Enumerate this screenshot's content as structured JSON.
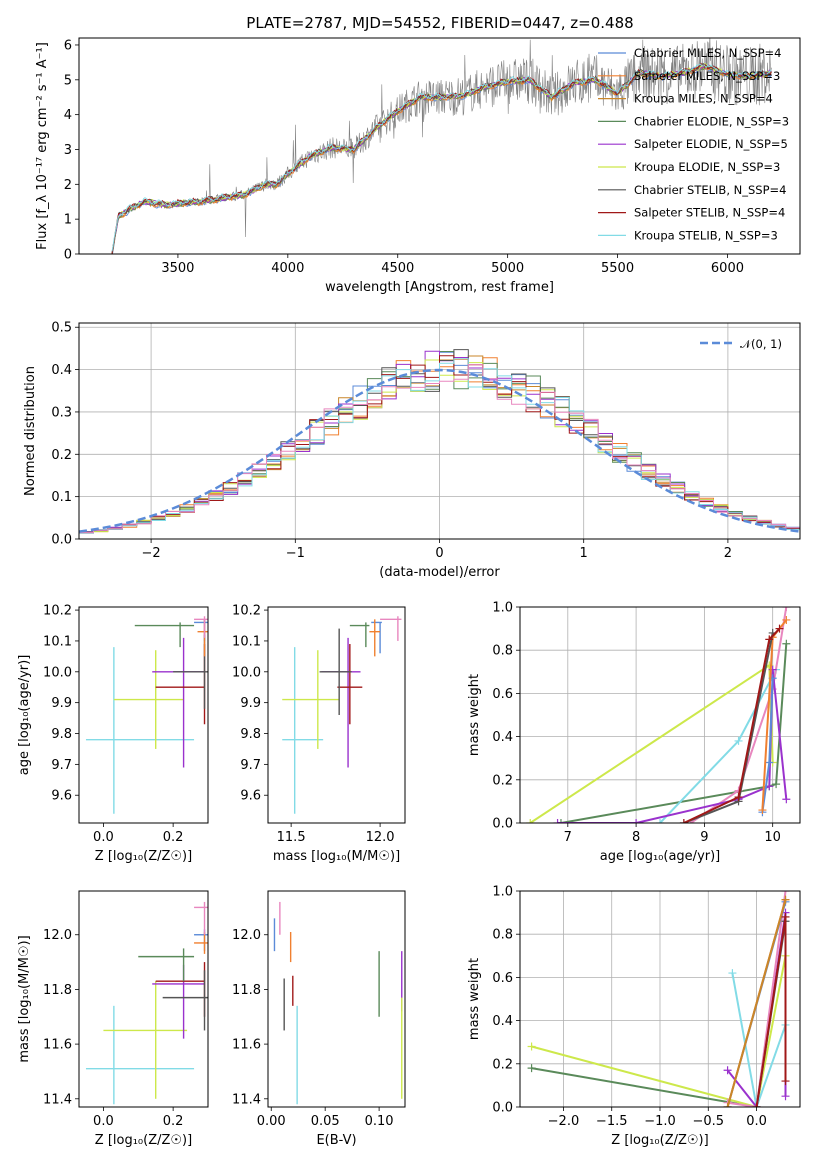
{
  "chart_data": [
    {
      "id": "spectrum",
      "type": "line",
      "title": "PLATE=2787, MJD=54552, FIBERID=0447, z=0.488",
      "xlabel": "wavelength [Angstrom, rest frame]",
      "ylabel": "Flux [f_λ 10⁻¹⁷ erg cm⁻² s⁻¹ A⁻¹]",
      "xlim": [
        3050,
        6330
      ],
      "ylim": [
        0,
        6.2
      ],
      "xticks": [
        3500,
        4000,
        4500,
        5000,
        5500,
        6000
      ],
      "yticks": [
        0,
        1,
        2,
        3,
        4,
        5,
        6
      ],
      "grid": false,
      "legend_position": "top-right",
      "data_color": "#808080",
      "data_x_range": [
        3500,
        6200
      ],
      "series": [
        {
          "name": "Chabrier MILES, N_SSP=4",
          "color": "#5b8bd8"
        },
        {
          "name": "Salpeter MILES, N_SSP=3",
          "color": "#f08030"
        },
        {
          "name": "Kroupa MILES, N_SSP=4",
          "color": "#c9862a"
        },
        {
          "name": "Chabrier ELODIE, N_SSP=3",
          "color": "#5a8a5a"
        },
        {
          "name": "Salpeter ELODIE, N_SSP=5",
          "color": "#9a32cd"
        },
        {
          "name": "Kroupa ELODIE, N_SSP=3",
          "color": "#cde84b"
        },
        {
          "name": "Chabrier STELIB, N_SSP=4",
          "color": "#555555"
        },
        {
          "name": "Salpeter STELIB, N_SSP=4",
          "color": "#a01818"
        },
        {
          "name": "Kroupa STELIB, N_SSP=3",
          "color": "#82dbe6"
        }
      ],
      "model_x": [
        3200,
        3230,
        3300,
        3350,
        3400,
        3450,
        3500,
        3600,
        3700,
        3800,
        3900,
        3950,
        4000,
        4100,
        4200,
        4300,
        4400,
        4500,
        4600,
        4700,
        4800,
        4900,
        5000,
        5100,
        5200,
        5300,
        5400,
        5500,
        5600,
        5700,
        5800,
        5900,
        6000,
        6100,
        6200
      ],
      "model_y": [
        0.0,
        1.1,
        1.35,
        1.5,
        1.45,
        1.4,
        1.45,
        1.5,
        1.6,
        1.7,
        2.0,
        2.0,
        2.3,
        2.8,
        3.05,
        3.0,
        3.6,
        4.1,
        4.5,
        4.5,
        4.55,
        4.8,
        4.95,
        5.0,
        4.5,
        4.9,
        5.0,
        4.6,
        5.2,
        5.1,
        5.2,
        5.4,
        5.15,
        5.1,
        5.2
      ]
    },
    {
      "id": "residuals",
      "type": "line",
      "xlabel": "(data-model)/error",
      "ylabel": "Normed distribution",
      "xlim": [
        -2.5,
        2.5
      ],
      "ylim": [
        0,
        0.51
      ],
      "xticks": [
        -2,
        -1,
        0,
        1,
        2
      ],
      "yticks": [
        0.0,
        0.1,
        0.2,
        0.3,
        0.4,
        0.5
      ],
      "grid": true,
      "legend_position": "top-right",
      "reference": {
        "name": "𝒩(0, 1)",
        "mu": 0,
        "sigma": 1,
        "color": "#5b8bd8"
      },
      "bin_width": 0.1
    },
    {
      "id": "age-vs-Z",
      "type": "scatter",
      "xlabel": "Z [log₁₀(Z/Z☉)]",
      "ylabel": "age  [log₁₀(age/yr)]",
      "xlim": [
        -0.07,
        0.3
      ],
      "ylim": [
        9.51,
        10.21
      ],
      "xticks": [
        0.0,
        0.2
      ],
      "yticks": [
        9.6,
        9.7,
        9.8,
        9.9,
        10.0,
        10.1,
        10.2
      ],
      "grid": false,
      "points": [
        {
          "color": "#82dbe6",
          "x": 0.03,
          "y": 9.78,
          "ex": [
            -0.05,
            0.26
          ],
          "ey": [
            9.54,
            10.08
          ]
        },
        {
          "color": "#cde84b",
          "x": 0.15,
          "y": 9.91,
          "ex": [
            0.03,
            0.23
          ],
          "ey": [
            9.75,
            10.07
          ]
        },
        {
          "color": "#9a32cd",
          "x": 0.23,
          "y": 10.0,
          "ex": [
            0.14,
            0.29
          ],
          "ey": [
            9.69,
            10.11
          ]
        },
        {
          "color": "#a01818",
          "x": 0.29,
          "y": 9.95,
          "ex": [
            0.15,
            0.29
          ],
          "ey": [
            9.83,
            10.09
          ]
        },
        {
          "color": "#555555",
          "x": 0.29,
          "y": 10.0,
          "ex": [
            0.2,
            0.3
          ],
          "ey": [
            9.88,
            10.12
          ]
        },
        {
          "color": "#5a8a5a",
          "x": 0.22,
          "y": 10.15,
          "ex": [
            0.09,
            0.26
          ],
          "ey": [
            10.08,
            10.16
          ]
        },
        {
          "color": "#5b8bd8",
          "x": 0.29,
          "y": 10.16,
          "ex": [
            0.26,
            0.3
          ],
          "ey": [
            10.1,
            10.17
          ]
        },
        {
          "color": "#f08030",
          "x": 0.29,
          "y": 10.13,
          "ex": [
            0.27,
            0.3
          ],
          "ey": [
            10.05,
            10.17
          ]
        },
        {
          "color": "#e887bf",
          "x": 0.29,
          "y": 10.17,
          "ex": [
            0.26,
            0.3
          ],
          "ey": [
            10.11,
            10.18
          ]
        }
      ]
    },
    {
      "id": "age-vs-mass",
      "type": "scatter",
      "xlabel": "mass [log₁₀(M/M☉)]",
      "ylabel": "",
      "xlim": [
        11.37,
        12.14
      ],
      "ylim": [
        9.51,
        10.21
      ],
      "xticks": [
        11.5,
        12.0
      ],
      "yticks": [
        9.6,
        9.7,
        9.8,
        9.9,
        10.0,
        10.1,
        10.2
      ],
      "grid": false,
      "points": [
        {
          "color": "#82dbe6",
          "x": 11.52,
          "y": 9.78,
          "ex": [
            11.45,
            11.68
          ],
          "ey": [
            9.54,
            10.08
          ]
        },
        {
          "color": "#cde84b",
          "x": 11.65,
          "y": 9.91,
          "ex": [
            11.45,
            11.77
          ],
          "ey": [
            9.75,
            10.07
          ]
        },
        {
          "color": "#9a32cd",
          "x": 11.82,
          "y": 10.0,
          "ex": [
            11.67,
            11.89
          ],
          "ey": [
            9.69,
            10.11
          ]
        },
        {
          "color": "#a01818",
          "x": 11.83,
          "y": 9.95,
          "ex": [
            11.76,
            11.9
          ],
          "ey": [
            9.83,
            10.09
          ]
        },
        {
          "color": "#555555",
          "x": 11.77,
          "y": 10.0,
          "ex": [
            11.66,
            11.84
          ],
          "ey": [
            9.86,
            10.14
          ]
        },
        {
          "color": "#5a8a5a",
          "x": 11.92,
          "y": 10.15,
          "ex": [
            11.83,
            11.94
          ],
          "ey": [
            10.08,
            10.16
          ]
        },
        {
          "color": "#5b8bd8",
          "x": 12.0,
          "y": 10.16,
          "ex": [
            11.95,
            12.01
          ],
          "ey": [
            10.06,
            10.16
          ]
        },
        {
          "color": "#f08030",
          "x": 11.97,
          "y": 10.13,
          "ex": [
            11.94,
            12.0
          ],
          "ey": [
            10.05,
            10.17
          ]
        },
        {
          "color": "#e887bf",
          "x": 12.1,
          "y": 10.17,
          "ex": [
            12.0,
            12.12
          ],
          "ey": [
            10.1,
            10.18
          ]
        }
      ]
    },
    {
      "id": "mass-weight-vs-age",
      "type": "line",
      "xlabel": "age  [log₁₀(age/yr)]",
      "ylabel": "mass weight",
      "xlim": [
        6.3,
        10.4
      ],
      "ylim": [
        0,
        1
      ],
      "xticks": [
        7,
        8,
        9,
        10
      ],
      "yticks": [
        0.0,
        0.2,
        0.4,
        0.6,
        0.8,
        1.0
      ],
      "grid": true,
      "series": [
        {
          "color": "#cde84b",
          "points": [
            [
              6.45,
              0.0
            ],
            [
              9.95,
              0.73
            ],
            [
              10.0,
              0.28
            ]
          ]
        },
        {
          "color": "#5a8a5a",
          "points": [
            [
              6.9,
              0.0
            ],
            [
              9.95,
              0.17
            ],
            [
              10.05,
              0.18
            ],
            [
              10.2,
              0.83
            ]
          ]
        },
        {
          "color": "#82dbe6",
          "points": [
            [
              8.35,
              0.0
            ],
            [
              9.5,
              0.38
            ],
            [
              10.05,
              0.71
            ]
          ]
        },
        {
          "color": "#e887bf",
          "points": [
            [
              8.8,
              0.0
            ],
            [
              9.5,
              0.15
            ],
            [
              10.0,
              0.62
            ],
            [
              10.2,
              1.0
            ]
          ]
        },
        {
          "color": "#9a32cd",
          "points": [
            [
              6.85,
              0.0
            ],
            [
              8.0,
              0.0
            ],
            [
              9.5,
              0.11
            ],
            [
              9.95,
              0.17
            ],
            [
              10.0,
              0.71
            ],
            [
              10.2,
              0.11
            ]
          ]
        },
        {
          "color": "#5b8bd8",
          "points": [
            [
              9.85,
              0.05
            ],
            [
              9.95,
              0.28
            ],
            [
              10.0,
              0.67
            ]
          ]
        },
        {
          "color": "#f08030",
          "points": [
            [
              9.85,
              0.06
            ],
            [
              10.0,
              0.86
            ],
            [
              10.2,
              0.94
            ]
          ]
        },
        {
          "color": "#555555",
          "points": [
            [
              8.7,
              0.0
            ],
            [
              9.5,
              0.1
            ],
            [
              10.0,
              0.88
            ]
          ]
        },
        {
          "color": "#a01818",
          "points": [
            [
              8.7,
              0.0
            ],
            [
              9.5,
              0.12
            ],
            [
              9.95,
              0.85
            ],
            [
              10.1,
              0.9
            ]
          ]
        }
      ]
    },
    {
      "id": "mass-vs-Z",
      "type": "scatter",
      "xlabel": "Z [log₁₀(Z/Z☉)]",
      "ylabel": "mass [log₁₀(M/M☉)]",
      "xlim": [
        -0.07,
        0.3
      ],
      "ylim": [
        11.37,
        12.16
      ],
      "xticks": [
        0.0,
        0.2
      ],
      "yticks": [
        11.4,
        11.6,
        11.8,
        12.0
      ],
      "grid": false,
      "points": [
        {
          "color": "#82dbe6",
          "x": 0.03,
          "y": 11.51,
          "ex": [
            -0.05,
            0.26
          ],
          "ey": [
            11.38,
            11.74
          ]
        },
        {
          "color": "#cde84b",
          "x": 0.15,
          "y": 11.65,
          "ex": [
            0.0,
            0.24
          ],
          "ey": [
            11.4,
            11.83
          ]
        },
        {
          "color": "#9a32cd",
          "x": 0.23,
          "y": 11.82,
          "ex": [
            0.14,
            0.29
          ],
          "ey": [
            11.62,
            11.89
          ]
        },
        {
          "color": "#a01818",
          "x": 0.29,
          "y": 11.83,
          "ex": [
            0.15,
            0.29
          ],
          "ey": [
            11.7,
            11.9
          ]
        },
        {
          "color": "#555555",
          "x": 0.29,
          "y": 11.77,
          "ex": [
            0.17,
            0.3
          ],
          "ey": [
            11.65,
            11.87
          ]
        },
        {
          "color": "#5a8a5a",
          "x": 0.23,
          "y": 11.92,
          "ex": [
            0.1,
            0.26
          ],
          "ey": [
            11.83,
            11.95
          ]
        },
        {
          "color": "#5b8bd8",
          "x": 0.29,
          "y": 12.0,
          "ex": [
            0.26,
            0.3
          ],
          "ey": [
            11.94,
            12.02
          ]
        },
        {
          "color": "#f08030",
          "x": 0.29,
          "y": 11.97,
          "ex": [
            0.26,
            0.3
          ],
          "ey": [
            11.93,
            12.01
          ]
        },
        {
          "color": "#e887bf",
          "x": 0.29,
          "y": 12.1,
          "ex": [
            0.26,
            0.3
          ],
          "ey": [
            12.0,
            12.12
          ]
        }
      ]
    },
    {
      "id": "mass-vs-EBV",
      "type": "scatter",
      "xlabel": "E(B-V)",
      "ylabel": "",
      "xlim": [
        -0.003,
        0.124
      ],
      "ylim": [
        11.37,
        12.16
      ],
      "xticks": [
        0.0,
        0.05,
        0.1
      ],
      "yticks": [
        11.4,
        11.6,
        11.8,
        12.0
      ],
      "grid": false,
      "points": [
        {
          "color": "#5b8bd8",
          "x": 0.003,
          "y": 12.0,
          "ey": [
            11.94,
            12.06
          ]
        },
        {
          "color": "#e887bf",
          "x": 0.008,
          "y": 12.1,
          "ey": [
            12.0,
            12.12
          ]
        },
        {
          "color": "#555555",
          "x": 0.012,
          "y": 11.77,
          "ey": [
            11.65,
            11.84
          ]
        },
        {
          "color": "#f08030",
          "x": 0.018,
          "y": 11.95,
          "ey": [
            11.9,
            12.01
          ]
        },
        {
          "color": "#a01818",
          "x": 0.02,
          "y": 11.82,
          "ey": [
            11.74,
            11.85
          ]
        },
        {
          "color": "#82dbe6",
          "x": 0.024,
          "y": 11.51,
          "ey": [
            11.38,
            11.74
          ]
        },
        {
          "color": "#5a8a5a",
          "x": 0.1,
          "y": 11.92,
          "ey": [
            11.7,
            11.94
          ]
        },
        {
          "color": "#9a32cd",
          "x": 0.121,
          "y": 11.82,
          "ey": [
            11.72,
            11.94
          ]
        },
        {
          "color": "#cde84b",
          "x": 0.121,
          "y": 11.65,
          "ey": [
            11.4,
            11.77
          ]
        }
      ]
    },
    {
      "id": "mass-weight-vs-Z",
      "type": "line",
      "xlabel": "Z [log₁₀(Z/Z☉)]",
      "ylabel": "mass weight",
      "xlim": [
        -2.45,
        0.45
      ],
      "ylim": [
        0,
        1
      ],
      "xticks": [
        -2.0,
        -1.5,
        -1.0,
        -0.5,
        0.0
      ],
      "xticklabels": [
        "−2.0",
        "−1.5",
        "−1.0",
        "−0.5",
        "0.0"
      ],
      "yticks": [
        0.0,
        0.2,
        0.4,
        0.6,
        0.8,
        1.0
      ],
      "grid": true,
      "series": [
        {
          "color": "#5a8a5a",
          "points": [
            [
              -2.33,
              0.18
            ],
            [
              0.0,
              0.0
            ],
            [
              0.3,
              0.88
            ]
          ]
        },
        {
          "color": "#cde84b",
          "points": [
            [
              -2.33,
              0.28
            ],
            [
              0.0,
              0.0
            ],
            [
              0.3,
              0.7
            ]
          ]
        },
        {
          "color": "#82dbe6",
          "points": [
            [
              -0.25,
              0.62
            ],
            [
              0.0,
              0.0
            ],
            [
              0.3,
              0.38
            ]
          ]
        },
        {
          "color": "#9a32cd",
          "points": [
            [
              -0.3,
              0.17
            ],
            [
              0.0,
              0.0
            ],
            [
              0.3,
              0.9
            ],
            [
              0.3,
              0.05
            ]
          ]
        },
        {
          "color": "#e887bf",
          "points": [
            [
              -0.3,
              0.02
            ],
            [
              0.0,
              0.0
            ],
            [
              0.3,
              1.0
            ]
          ]
        },
        {
          "color": "#5b8bd8",
          "points": [
            [
              -0.3,
              0.0
            ],
            [
              0.3,
              0.95
            ]
          ]
        },
        {
          "color": "#f08030",
          "points": [
            [
              -0.3,
              0.0
            ],
            [
              0.3,
              0.96
            ]
          ]
        },
        {
          "color": "#c9862a",
          "points": [
            [
              -0.3,
              0.0
            ],
            [
              0.3,
              0.96
            ]
          ]
        },
        {
          "color": "#555555",
          "points": [
            [
              0.0,
              0.0
            ],
            [
              0.3,
              0.86
            ]
          ]
        },
        {
          "color": "#a01818",
          "points": [
            [
              0.0,
              0.0
            ],
            [
              0.3,
              0.88
            ],
            [
              0.3,
              0.12
            ]
          ]
        }
      ]
    }
  ]
}
